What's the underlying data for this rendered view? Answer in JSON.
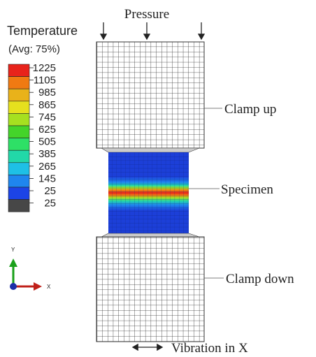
{
  "title": "Pressure",
  "legend": {
    "title": "Temperature",
    "subtitle": "(Avg: 75%)",
    "labels": [
      "1225",
      "1105",
      "985",
      "865",
      "745",
      "625",
      "505",
      "385",
      "265",
      "145",
      "25",
      "25"
    ],
    "colors": [
      "#e8231b",
      "#f07a12",
      "#e9b21a",
      "#e6e01e",
      "#a6e020",
      "#44d42a",
      "#2ee066",
      "#22d8a8",
      "#1ec0e6",
      "#1f86ee",
      "#1c44e6",
      "#474747"
    ]
  },
  "labels": {
    "clamp_up": "Clamp up",
    "specimen": "Specimen",
    "clamp_down": "Clamp down",
    "vibration": "Vibration in X"
  },
  "axes": {
    "y": "Y",
    "x": "X"
  }
}
